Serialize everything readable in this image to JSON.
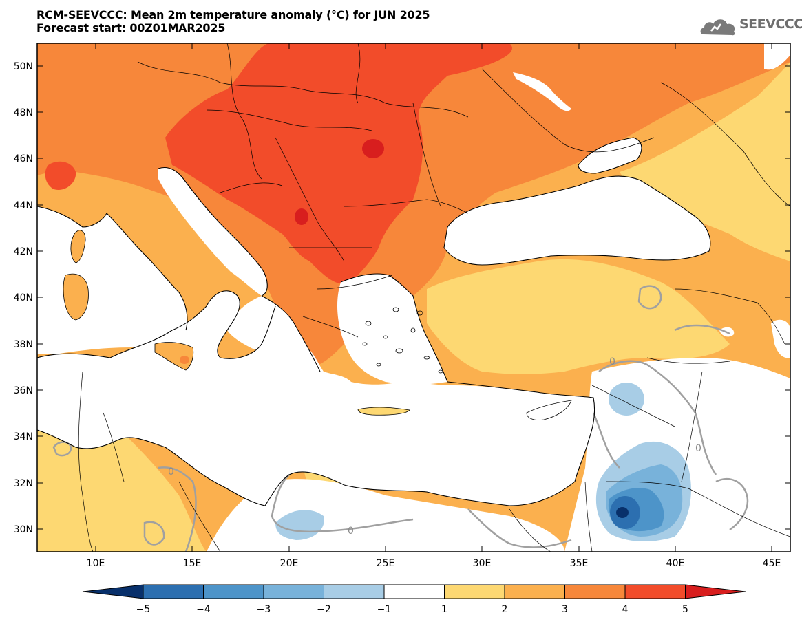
{
  "title": {
    "line1": "RCM-SEEVCCC: Mean 2m temperature anomaly (°C) for JUN 2025",
    "line2": "Forecast start: 00Z01MAR2025"
  },
  "logo": {
    "text": "SEEVCCC",
    "icon": "cloud-icon"
  },
  "map": {
    "projection": "lat-lon",
    "lon_range": [
      7,
      46
    ],
    "lat_range": [
      29,
      51
    ],
    "lat_labels": [
      "50N",
      "48N",
      "46N",
      "44N",
      "42N",
      "40N",
      "38N",
      "36N",
      "34N",
      "32N",
      "30N"
    ],
    "lon_labels": [
      "10E",
      "15E",
      "20E",
      "25E",
      "30E",
      "35E",
      "40E",
      "45E"
    ],
    "contour_label": "0"
  },
  "colorbar": {
    "labels": [
      "−5",
      "−4",
      "−3",
      "−2",
      "−1",
      "1",
      "2",
      "3",
      "4",
      "5"
    ],
    "colors": [
      "#08306b",
      "#2c6fb0",
      "#4d94c9",
      "#78b2da",
      "#a8cde6",
      "#ffffff",
      "#fdd872",
      "#fbb04e",
      "#f7873a",
      "#f24c2a",
      "#d81e1e"
    ]
  },
  "colors": {
    "sea": "#ffffff",
    "anomaly_1_2": "#fdd872",
    "anomaly_2_3": "#fbb04e",
    "anomaly_3_4": "#f7873a",
    "anomaly_4_5": "#f24c2a",
    "anomaly_5_plus": "#d81e1e",
    "anomaly_minus_1_2": "#a8cde6",
    "anomaly_minus_2_3": "#78b2da",
    "anomaly_minus_3_4": "#4d94c9",
    "anomaly_minus_4_5": "#2c6fb0",
    "anomaly_below_minus_5": "#08306b",
    "zero_contour": "#a0a0a0"
  }
}
